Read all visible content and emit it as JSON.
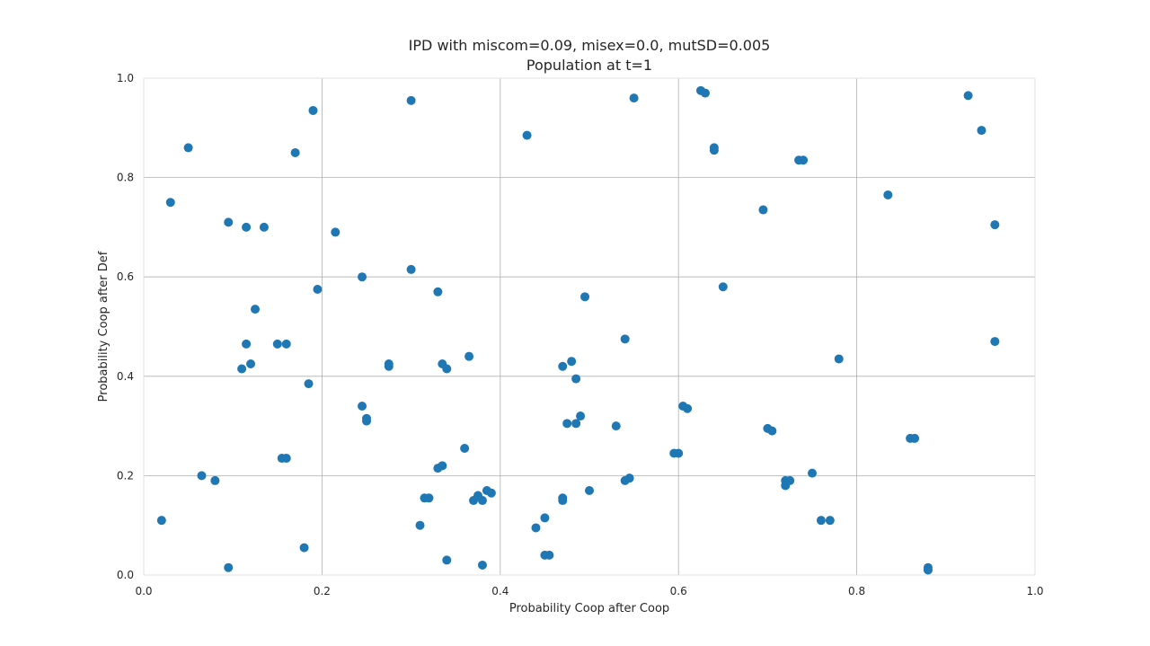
{
  "chart_data": {
    "type": "scatter",
    "title": "IPD with miscom=0.09, misex=0.0, mutSD=0.005",
    "subtitle": "Population at t=1",
    "xlabel": "Probability Coop after Coop",
    "ylabel": "Probability Coop after Def",
    "xlim": [
      0.0,
      1.0
    ],
    "ylim": [
      0.0,
      1.0
    ],
    "xticks": [
      "0.0",
      "0.2",
      "0.4",
      "0.6",
      "0.8",
      "1.0"
    ],
    "yticks": [
      "0.0",
      "0.2",
      "0.4",
      "0.6",
      "0.8",
      "1.0"
    ],
    "grid": true,
    "point_color": "#1f77b4",
    "points": [
      [
        0.02,
        0.11
      ],
      [
        0.03,
        0.75
      ],
      [
        0.05,
        0.86
      ],
      [
        0.065,
        0.2
      ],
      [
        0.08,
        0.19
      ],
      [
        0.095,
        0.71
      ],
      [
        0.095,
        0.015
      ],
      [
        0.11,
        0.415
      ],
      [
        0.115,
        0.7
      ],
      [
        0.115,
        0.465
      ],
      [
        0.12,
        0.425
      ],
      [
        0.125,
        0.535
      ],
      [
        0.135,
        0.7
      ],
      [
        0.15,
        0.465
      ],
      [
        0.155,
        0.235
      ],
      [
        0.16,
        0.465
      ],
      [
        0.16,
        0.235
      ],
      [
        0.17,
        0.85
      ],
      [
        0.18,
        0.055
      ],
      [
        0.185,
        0.385
      ],
      [
        0.19,
        0.935
      ],
      [
        0.195,
        0.575
      ],
      [
        0.215,
        0.69
      ],
      [
        0.245,
        0.6
      ],
      [
        0.245,
        0.34
      ],
      [
        0.25,
        0.315
      ],
      [
        0.25,
        0.31
      ],
      [
        0.275,
        0.425
      ],
      [
        0.275,
        0.42
      ],
      [
        0.3,
        0.955
      ],
      [
        0.3,
        0.615
      ],
      [
        0.31,
        0.1
      ],
      [
        0.315,
        0.155
      ],
      [
        0.32,
        0.155
      ],
      [
        0.33,
        0.57
      ],
      [
        0.33,
        0.215
      ],
      [
        0.335,
        0.425
      ],
      [
        0.335,
        0.22
      ],
      [
        0.34,
        0.415
      ],
      [
        0.34,
        0.03
      ],
      [
        0.36,
        0.255
      ],
      [
        0.365,
        0.44
      ],
      [
        0.37,
        0.15
      ],
      [
        0.375,
        0.16
      ],
      [
        0.38,
        0.15
      ],
      [
        0.38,
        0.02
      ],
      [
        0.385,
        0.17
      ],
      [
        0.39,
        0.165
      ],
      [
        0.43,
        0.885
      ],
      [
        0.44,
        0.095
      ],
      [
        0.45,
        0.115
      ],
      [
        0.45,
        0.04
      ],
      [
        0.455,
        0.04
      ],
      [
        0.47,
        0.42
      ],
      [
        0.47,
        0.155
      ],
      [
        0.47,
        0.15
      ],
      [
        0.475,
        0.305
      ],
      [
        0.48,
        0.43
      ],
      [
        0.485,
        0.395
      ],
      [
        0.485,
        0.305
      ],
      [
        0.49,
        0.32
      ],
      [
        0.495,
        0.56
      ],
      [
        0.5,
        0.17
      ],
      [
        0.53,
        0.3
      ],
      [
        0.54,
        0.475
      ],
      [
        0.54,
        0.19
      ],
      [
        0.545,
        0.195
      ],
      [
        0.55,
        0.96
      ],
      [
        0.595,
        0.245
      ],
      [
        0.6,
        0.245
      ],
      [
        0.605,
        0.34
      ],
      [
        0.61,
        0.335
      ],
      [
        0.625,
        0.975
      ],
      [
        0.63,
        0.97
      ],
      [
        0.64,
        0.86
      ],
      [
        0.64,
        0.855
      ],
      [
        0.65,
        0.58
      ],
      [
        0.695,
        0.735
      ],
      [
        0.7,
        0.295
      ],
      [
        0.705,
        0.29
      ],
      [
        0.72,
        0.18
      ],
      [
        0.72,
        0.19
      ],
      [
        0.725,
        0.19
      ],
      [
        0.735,
        0.835
      ],
      [
        0.74,
        0.835
      ],
      [
        0.75,
        0.205
      ],
      [
        0.76,
        0.11
      ],
      [
        0.77,
        0.11
      ],
      [
        0.78,
        0.435
      ],
      [
        0.835,
        0.765
      ],
      [
        0.86,
        0.275
      ],
      [
        0.865,
        0.275
      ],
      [
        0.88,
        0.015
      ],
      [
        0.88,
        0.01
      ],
      [
        0.925,
        0.965
      ],
      [
        0.94,
        0.895
      ],
      [
        0.955,
        0.705
      ],
      [
        0.955,
        0.47
      ]
    ]
  }
}
